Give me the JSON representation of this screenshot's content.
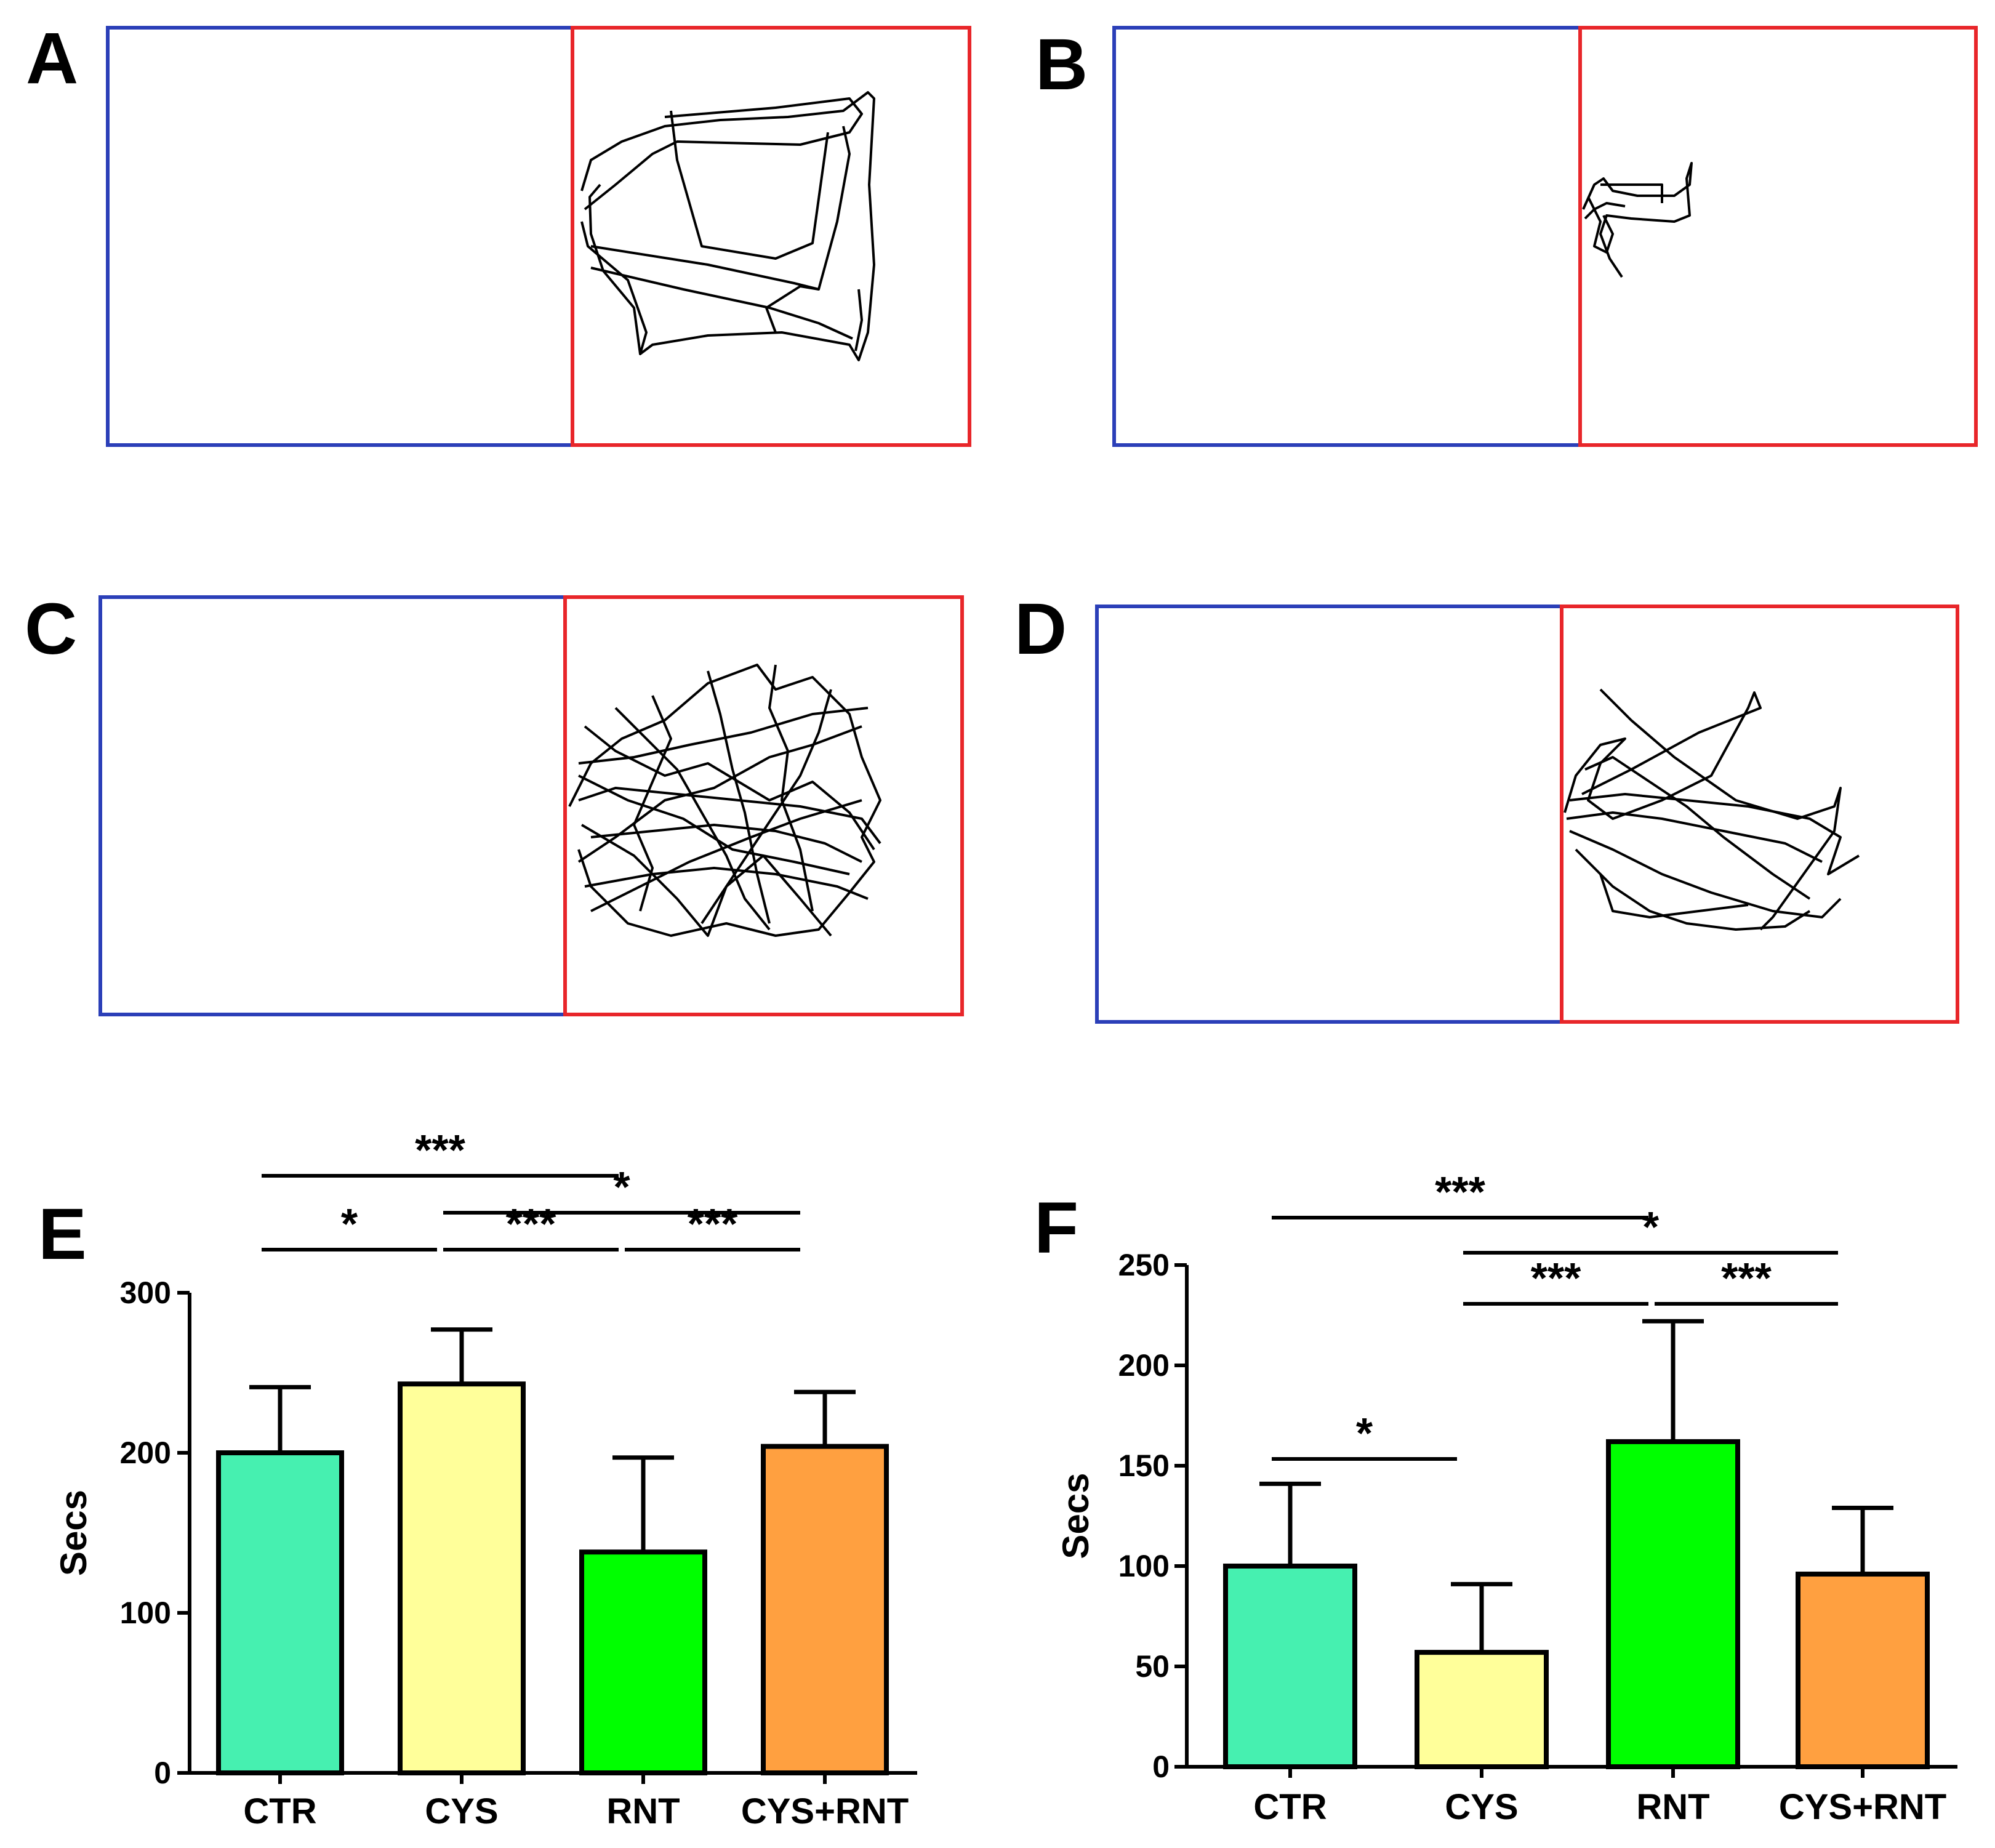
{
  "panels": {
    "A": {
      "letter": "A"
    },
    "B": {
      "letter": "B"
    },
    "C": {
      "letter": "C"
    },
    "D": {
      "letter": "D"
    }
  },
  "colors": {
    "dark_compartment": "#2b3fb8",
    "light_compartment": "#e8262a",
    "track": "#000000",
    "CTR": "#46f0b0",
    "CYS": "#ffff9a",
    "RNT": "#00ff00",
    "CYS+RNT": "#ffa040"
  },
  "chart_data": [
    {
      "panel": "E",
      "type": "bar",
      "title": "",
      "xlabel": "",
      "ylabel": "Secs",
      "categories": [
        "CTR",
        "CYS",
        "RNT",
        "CYS+RNT"
      ],
      "values": [
        200,
        243,
        138,
        204
      ],
      "errors": [
        41,
        34,
        59,
        34
      ],
      "ylim": [
        0,
        300
      ],
      "yticks": [
        0,
        100,
        200,
        300
      ],
      "significance": [
        {
          "from": 0,
          "to": 1,
          "label": "*",
          "level": 1
        },
        {
          "from": 1,
          "to": 2,
          "label": "***",
          "level": 1
        },
        {
          "from": 2,
          "to": 3,
          "label": "***",
          "level": 1
        },
        {
          "from": 0,
          "to": 2,
          "label": "***",
          "level": 3
        },
        {
          "from": 1,
          "to": 3,
          "label": "*",
          "level": 2
        }
      ]
    },
    {
      "panel": "F",
      "type": "bar",
      "title": "",
      "xlabel": "",
      "ylabel": "Secs",
      "categories": [
        "CTR",
        "CYS",
        "RNT",
        "CYS+RNT"
      ],
      "values": [
        100,
        57,
        162,
        96
      ],
      "errors": [
        41,
        34,
        60,
        33
      ],
      "ylim": [
        0,
        250
      ],
      "yticks": [
        0,
        50,
        100,
        150,
        200,
        250
      ],
      "significance": [
        {
          "from": 0,
          "to": 1,
          "label": "*",
          "level": 0
        },
        {
          "from": 1,
          "to": 2,
          "label": "***",
          "level": 1
        },
        {
          "from": 2,
          "to": 3,
          "label": "***",
          "level": 1
        },
        {
          "from": 1,
          "to": 3,
          "label": "*",
          "level": 2
        },
        {
          "from": 0,
          "to": 2,
          "label": "***",
          "level": 3
        }
      ]
    }
  ]
}
